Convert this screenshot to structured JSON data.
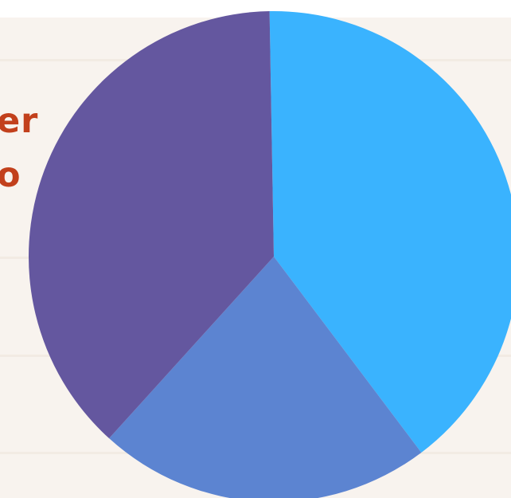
{
  "heading": {
    "line1": "er",
    "line2": "o"
  },
  "chart_data": {
    "type": "pie",
    "title": "",
    "slices": [
      {
        "value": 40,
        "color": "#3ab3fe"
      },
      {
        "value": 22,
        "color": "#5c84d1"
      },
      {
        "value": 38,
        "color": "#64579f"
      }
    ]
  }
}
